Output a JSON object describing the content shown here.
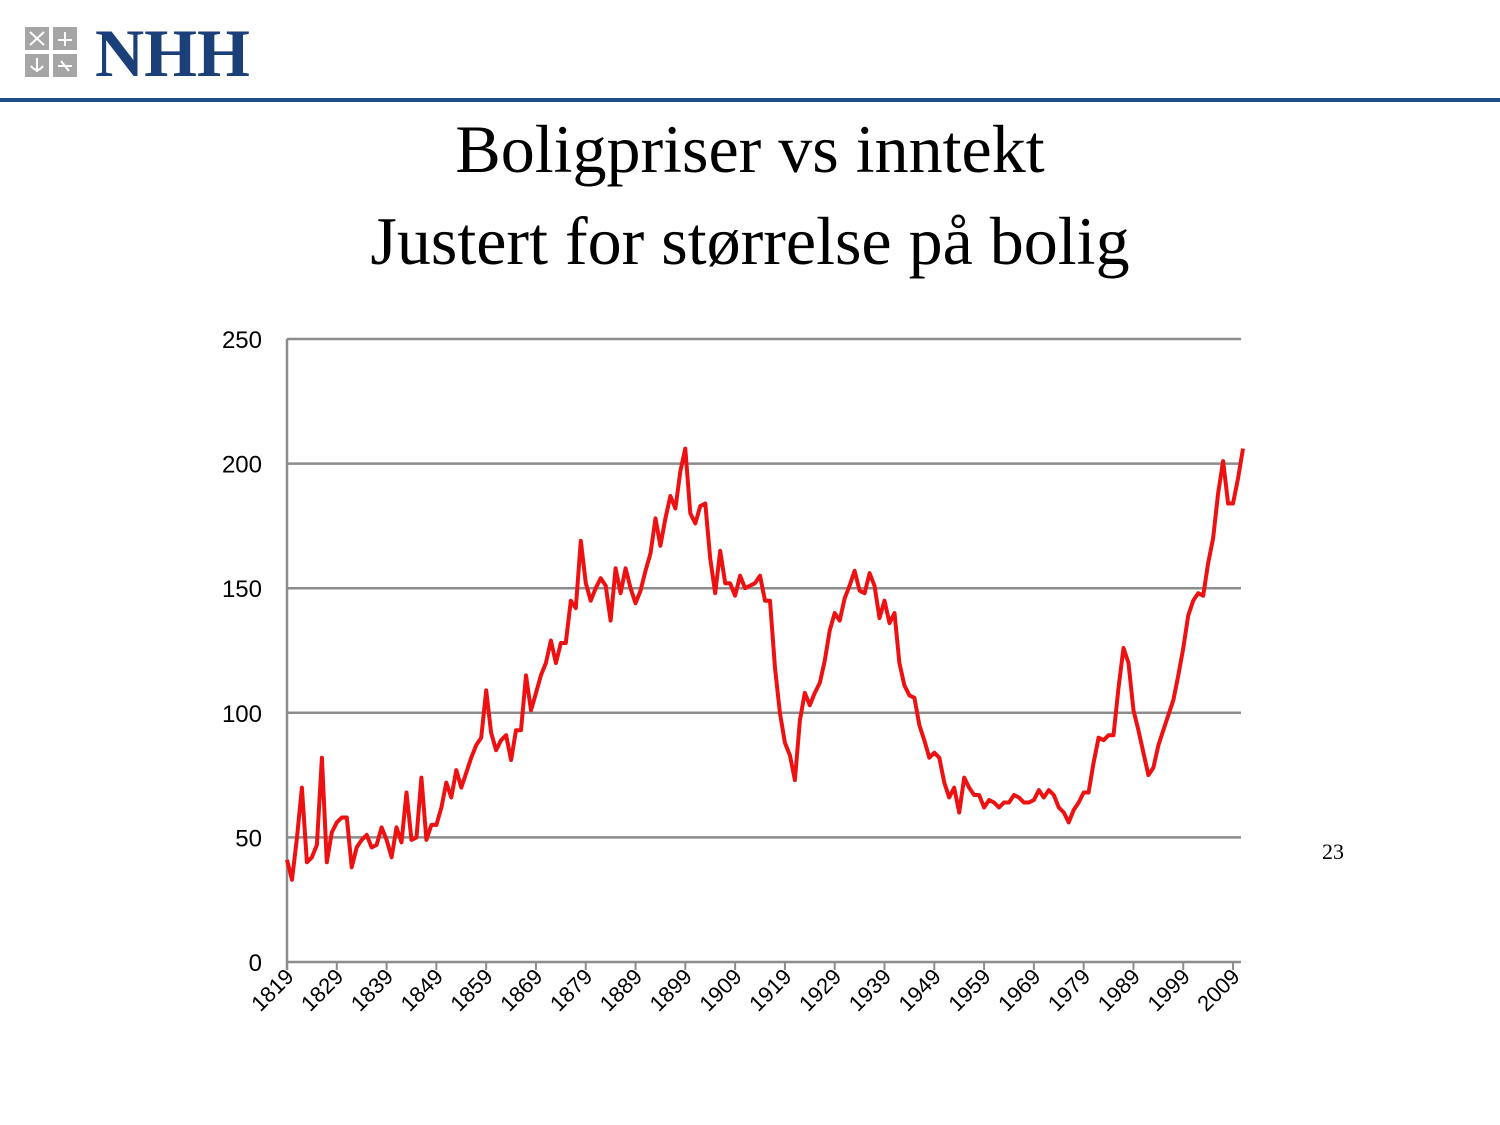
{
  "header": {
    "logo_text": "NHH"
  },
  "page_number": "23",
  "chart_data": {
    "type": "line",
    "title": "Boligpriser vs inntekt",
    "subtitle": "Justert for størrelse på bolig",
    "x": [
      1819,
      1820,
      1821,
      1822,
      1823,
      1824,
      1825,
      1826,
      1827,
      1828,
      1829,
      1830,
      1831,
      1832,
      1833,
      1834,
      1835,
      1836,
      1837,
      1838,
      1839,
      1840,
      1841,
      1842,
      1843,
      1844,
      1845,
      1846,
      1847,
      1848,
      1849,
      1850,
      1851,
      1852,
      1853,
      1854,
      1855,
      1856,
      1857,
      1858,
      1859,
      1860,
      1861,
      1862,
      1863,
      1864,
      1865,
      1866,
      1867,
      1868,
      1869,
      1870,
      1871,
      1872,
      1873,
      1874,
      1875,
      1876,
      1877,
      1878,
      1879,
      1880,
      1881,
      1882,
      1883,
      1884,
      1885,
      1886,
      1887,
      1888,
      1889,
      1890,
      1891,
      1892,
      1893,
      1894,
      1895,
      1896,
      1897,
      1898,
      1899,
      1900,
      1901,
      1902,
      1903,
      1904,
      1905,
      1906,
      1907,
      1908,
      1909,
      1910,
      1911,
      1912,
      1913,
      1914,
      1915,
      1916,
      1917,
      1918,
      1919,
      1920,
      1921,
      1922,
      1923,
      1924,
      1925,
      1926,
      1927,
      1928,
      1929,
      1930,
      1931,
      1932,
      1933,
      1934,
      1935,
      1936,
      1937,
      1938,
      1939,
      1940,
      1941,
      1942,
      1943,
      1944,
      1945,
      1946,
      1947,
      1948,
      1949,
      1950,
      1951,
      1952,
      1953,
      1954,
      1955,
      1956,
      1957,
      1958,
      1959,
      1960,
      1961,
      1962,
      1963,
      1964,
      1965,
      1966,
      1967,
      1968,
      1969,
      1970,
      1971,
      1972,
      1973,
      1974,
      1975,
      1976,
      1977,
      1978,
      1979,
      1980,
      1981,
      1982,
      1983,
      1984,
      1985,
      1986,
      1987,
      1988,
      1989,
      1990,
      1991,
      1992,
      1993,
      1994,
      1995,
      1996,
      1997,
      1998,
      1999,
      2000,
      2001,
      2002,
      2003,
      2004,
      2005,
      2006,
      2007,
      2008,
      2009,
      2010,
      2011
    ],
    "values": [
      41,
      33,
      50,
      70,
      40,
      42,
      47,
      82,
      40,
      52,
      56,
      58,
      58,
      38,
      46,
      49,
      51,
      46,
      47,
      54,
      49,
      42,
      54,
      48,
      68,
      49,
      50,
      74,
      49,
      55,
      55,
      62,
      72,
      66,
      77,
      70,
      76,
      82,
      87,
      90,
      109,
      92,
      85,
      89,
      91,
      81,
      93,
      93,
      115,
      101,
      108,
      115,
      120,
      129,
      120,
      128,
      128,
      145,
      142,
      169,
      152,
      145,
      150,
      154,
      151,
      137,
      158,
      148,
      158,
      150,
      144,
      149,
      157,
      164,
      178,
      167,
      178,
      187,
      182,
      197,
      206,
      180,
      176,
      183,
      184,
      162,
      148,
      165,
      152,
      152,
      147,
      155,
      150,
      151,
      152,
      155,
      145,
      145,
      118,
      100,
      88,
      83,
      73,
      97,
      108,
      103,
      108,
      112,
      121,
      133,
      140,
      137,
      146,
      151,
      157,
      149,
      148,
      156,
      151,
      138,
      145,
      136,
      140,
      120,
      111,
      107,
      106,
      95,
      89,
      82,
      84,
      82,
      72,
      66,
      70,
      60,
      74,
      70,
      67,
      67,
      62,
      65,
      64,
      62,
      64,
      64,
      67,
      66,
      64,
      64,
      65,
      69,
      66,
      69,
      67,
      62,
      60,
      56,
      61,
      64,
      68,
      68,
      80,
      90,
      89,
      91,
      91,
      110,
      126,
      120,
      101,
      93,
      84,
      75,
      78,
      87,
      93,
      99,
      105,
      115,
      126,
      139,
      145,
      148,
      147,
      160,
      170,
      188,
      201,
      184,
      184,
      194,
      206
    ],
    "color": "#ee1111",
    "xlim": [
      1819,
      2011
    ],
    "xticks": [
      1819,
      1829,
      1839,
      1849,
      1859,
      1869,
      1879,
      1889,
      1899,
      1909,
      1919,
      1929,
      1939,
      1949,
      1959,
      1969,
      1979,
      1989,
      1999,
      2009
    ],
    "ylim": [
      0,
      250
    ],
    "yticks": [
      0,
      50,
      100,
      150,
      200,
      250
    ],
    "grid": true
  }
}
